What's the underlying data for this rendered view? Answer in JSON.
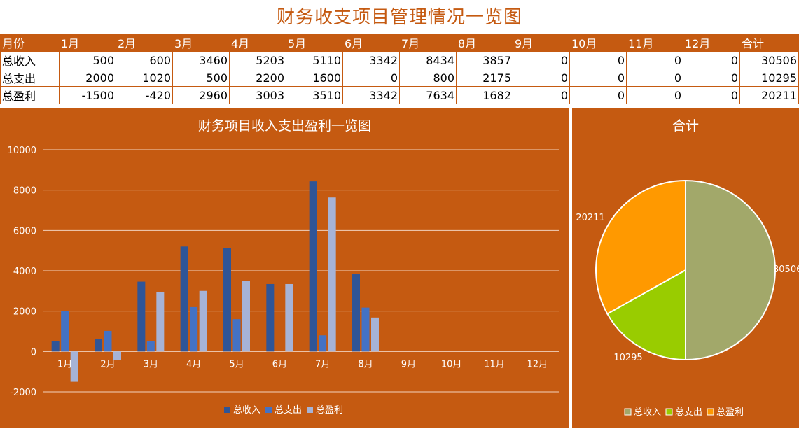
{
  "title": "财务收支项目管理情况一览图",
  "table": {
    "headers": [
      "月份",
      "1月",
      "2月",
      "3月",
      "4月",
      "5月",
      "6月",
      "7月",
      "8月",
      "9月",
      "10月",
      "11月",
      "12月",
      "合计"
    ],
    "rows": [
      {
        "label": "总收入",
        "values": [
          500,
          600,
          3460,
          5203,
          5110,
          3342,
          8434,
          3857,
          0,
          0,
          0,
          0,
          30506
        ]
      },
      {
        "label": "总支出",
        "values": [
          2000,
          1020,
          500,
          2200,
          1600,
          0,
          800,
          2175,
          0,
          0,
          0,
          0,
          10295
        ]
      },
      {
        "label": "总盈利",
        "values": [
          -1500,
          -420,
          2960,
          3003,
          3510,
          3342,
          7634,
          1682,
          0,
          0,
          0,
          0,
          20211
        ]
      }
    ]
  },
  "colors": {
    "panel_bg": "#c55a11",
    "series": [
      "#2f5597",
      "#4472c4",
      "#a6b3d6"
    ],
    "pie": [
      "#a2a86a",
      "#99cc00",
      "#ff9900"
    ]
  },
  "chart_data": [
    {
      "type": "bar",
      "title": "财务项目收入支出盈利一览图",
      "categories": [
        "1月",
        "2月",
        "3月",
        "4月",
        "5月",
        "6月",
        "7月",
        "8月",
        "9月",
        "10月",
        "11月",
        "12月"
      ],
      "series": [
        {
          "name": "总收入",
          "values": [
            500,
            600,
            3460,
            5203,
            5110,
            3342,
            8434,
            3857,
            0,
            0,
            0,
            0
          ]
        },
        {
          "name": "总支出",
          "values": [
            2000,
            1020,
            500,
            2200,
            1600,
            0,
            800,
            2175,
            0,
            0,
            0,
            0
          ]
        },
        {
          "name": "总盈利",
          "values": [
            -1500,
            -420,
            2960,
            3003,
            3510,
            3342,
            7634,
            1682,
            0,
            0,
            0,
            0
          ]
        }
      ],
      "ylim": [
        -2000,
        10000
      ],
      "yticks": [
        -2000,
        0,
        2000,
        4000,
        6000,
        8000,
        10000
      ],
      "grid": true,
      "legend": "bottom"
    },
    {
      "type": "pie",
      "title": "合计",
      "labels": [
        "总收入",
        "总支出",
        "总盈利"
      ],
      "values": [
        30506,
        10295,
        20211
      ],
      "legend": "bottom"
    }
  ]
}
